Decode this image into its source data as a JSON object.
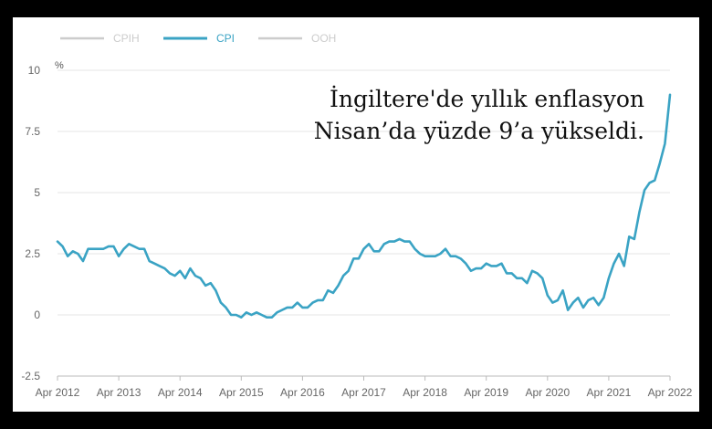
{
  "headline": {
    "line1": "İngiltere'de yıllık enflasyon",
    "line2": "Nisan’da yüzde 9’a yükseldi."
  },
  "colors": {
    "cpi": "#3aa3c4",
    "inactive": "#cccccc",
    "grid": "#e4e4e4",
    "axis": "#bbbbbb"
  },
  "chart_data": {
    "type": "line",
    "ylabel": "%",
    "ylim": [
      -2.5,
      10
    ],
    "yticks": [
      {
        "value": 10,
        "label": "10"
      },
      {
        "value": 7.5,
        "label": "7.5"
      },
      {
        "value": 5,
        "label": "5"
      },
      {
        "value": 2.5,
        "label": "2.5"
      },
      {
        "value": 0,
        "label": "0"
      },
      {
        "value": -2.5,
        "label": "-2.5"
      }
    ],
    "xticks": [
      "Apr 2012",
      "Apr 2013",
      "Apr 2014",
      "Apr 2015",
      "Apr 2016",
      "Apr 2017",
      "Apr 2018",
      "Apr 2019",
      "Apr 2020",
      "Apr 2021",
      "Apr 2022"
    ],
    "x_start": "Apr 2012",
    "x_end": "Apr 2022",
    "grid": true,
    "legend": [
      {
        "name": "CPIH",
        "active": false
      },
      {
        "name": "CPI",
        "active": true
      },
      {
        "name": "OOH",
        "active": false
      }
    ],
    "legend_position": "top-left",
    "series": [
      {
        "name": "CPI",
        "values": [
          3.0,
          2.8,
          2.4,
          2.6,
          2.5,
          2.2,
          2.7,
          2.7,
          2.7,
          2.7,
          2.8,
          2.8,
          2.4,
          2.7,
          2.9,
          2.8,
          2.7,
          2.7,
          2.2,
          2.1,
          2.0,
          1.9,
          1.7,
          1.6,
          1.8,
          1.5,
          1.9,
          1.6,
          1.5,
          1.2,
          1.3,
          1.0,
          0.5,
          0.3,
          0.0,
          0.0,
          -0.1,
          0.1,
          0.0,
          0.1,
          0.0,
          -0.1,
          -0.1,
          0.1,
          0.2,
          0.3,
          0.3,
          0.5,
          0.3,
          0.3,
          0.5,
          0.6,
          0.6,
          1.0,
          0.9,
          1.2,
          1.6,
          1.8,
          2.3,
          2.3,
          2.7,
          2.9,
          2.6,
          2.6,
          2.9,
          3.0,
          3.0,
          3.1,
          3.0,
          3.0,
          2.7,
          2.5,
          2.4,
          2.4,
          2.4,
          2.5,
          2.7,
          2.4,
          2.4,
          2.3,
          2.1,
          1.8,
          1.9,
          1.9,
          2.1,
          2.0,
          2.0,
          2.1,
          1.7,
          1.7,
          1.5,
          1.5,
          1.3,
          1.8,
          1.7,
          1.5,
          0.8,
          0.5,
          0.6,
          1.0,
          0.2,
          0.5,
          0.7,
          0.3,
          0.6,
          0.7,
          0.4,
          0.7,
          1.5,
          2.1,
          2.5,
          2.0,
          3.2,
          3.1,
          4.2,
          5.1,
          5.4,
          5.5,
          6.2,
          7.0,
          9.0
        ]
      }
    ]
  }
}
